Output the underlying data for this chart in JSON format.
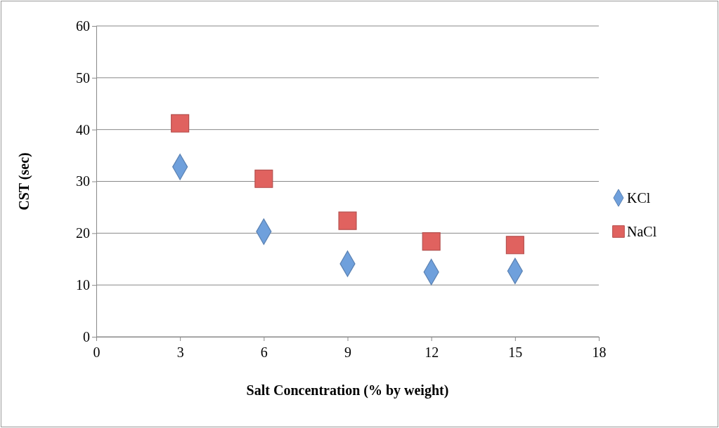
{
  "chart_data": {
    "type": "scatter",
    "xlabel": "Salt Concentration (% by weight)",
    "ylabel": "CST (sec)",
    "x": [
      3,
      6,
      9,
      12,
      15
    ],
    "series": [
      {
        "name": "KCl",
        "color": "#6fa0dc",
        "marker": "diamond",
        "values": [
          32.8,
          20.3,
          14.1,
          12.5,
          12.7
        ]
      },
      {
        "name": "NaCl",
        "color": "#e0625f",
        "marker": "square",
        "values": [
          41.2,
          30.5,
          22.4,
          18.4,
          17.7
        ]
      }
    ],
    "xlim": [
      0,
      18
    ],
    "xticks": [
      0,
      3,
      6,
      9,
      12,
      15,
      18
    ],
    "ylim": [
      0,
      60
    ],
    "yticks": [
      0,
      10,
      20,
      30,
      40,
      50,
      60
    ],
    "grid": "y",
    "legend": "right"
  }
}
